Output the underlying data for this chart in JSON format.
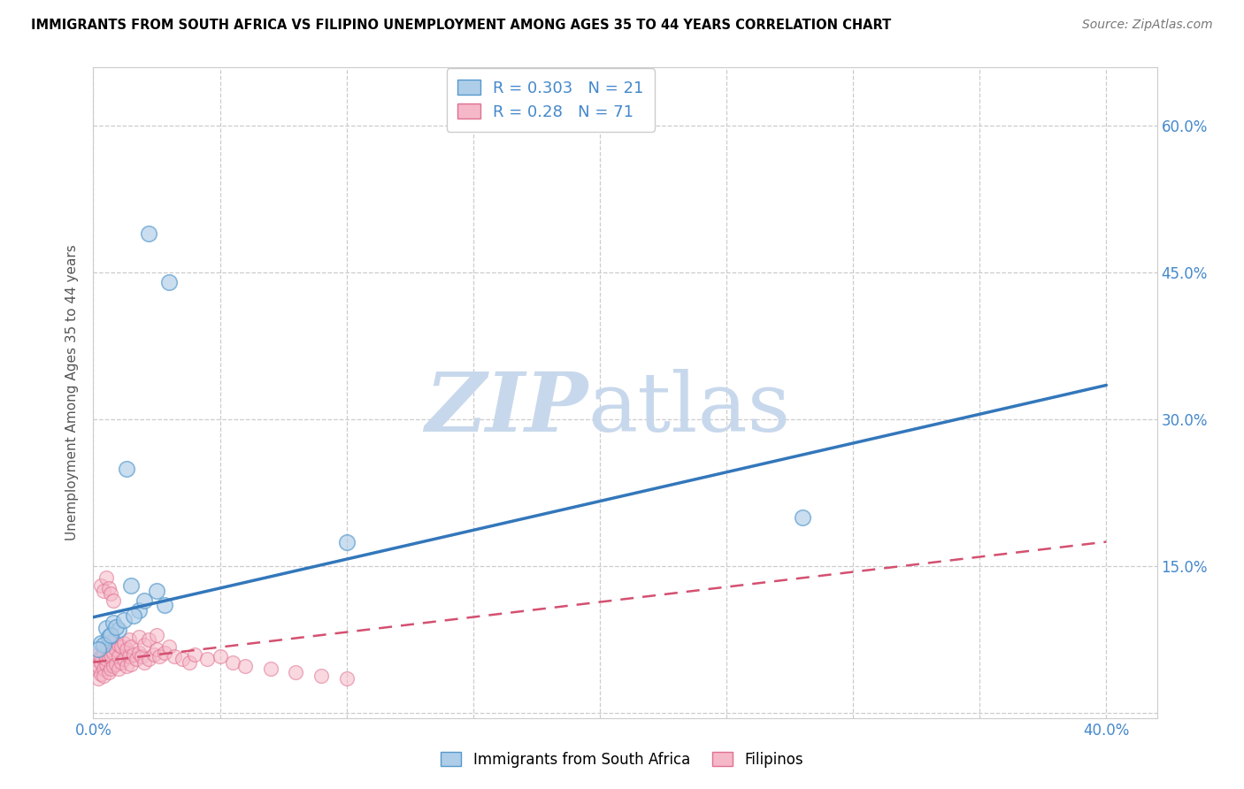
{
  "title": "IMMIGRANTS FROM SOUTH AFRICA VS FILIPINO UNEMPLOYMENT AMONG AGES 35 TO 44 YEARS CORRELATION CHART",
  "source": "Source: ZipAtlas.com",
  "ylabel": "Unemployment Among Ages 35 to 44 years",
  "xlim": [
    0.0,
    0.42
  ],
  "ylim": [
    -0.005,
    0.66
  ],
  "xticks": [
    0.0,
    0.05,
    0.1,
    0.15,
    0.2,
    0.25,
    0.3,
    0.35,
    0.4
  ],
  "yticks": [
    0.0,
    0.15,
    0.3,
    0.45,
    0.6
  ],
  "ytick_right_labels": [
    "",
    "15.0%",
    "30.0%",
    "45.0%",
    "60.0%"
  ],
  "blue_R": 0.303,
  "blue_N": 21,
  "pink_R": 0.28,
  "pink_N": 71,
  "blue_fill": "#aecde8",
  "blue_edge": "#5599cc",
  "blue_line": "#3377bb",
  "pink_fill": "#f5b8c8",
  "pink_edge": "#e07090",
  "pink_line": "#d45070",
  "watermark_zip_color": "#c8d8ec",
  "watermark_atlas_color": "#c8d8ec",
  "tick_label_color": "#4488cc",
  "blue_scatter_x": [
    0.022,
    0.03,
    0.005,
    0.008,
    0.003,
    0.006,
    0.01,
    0.004,
    0.013,
    0.007,
    0.015,
    0.009,
    0.002,
    0.018,
    0.02,
    0.012,
    0.025,
    0.028,
    0.016,
    0.28,
    0.1
  ],
  "blue_scatter_y": [
    0.49,
    0.44,
    0.087,
    0.092,
    0.072,
    0.078,
    0.085,
    0.07,
    0.25,
    0.08,
    0.13,
    0.088,
    0.065,
    0.105,
    0.115,
    0.095,
    0.125,
    0.11,
    0.1,
    0.2,
    0.175
  ],
  "pink_scatter_x": [
    0.001,
    0.001,
    0.002,
    0.002,
    0.002,
    0.003,
    0.003,
    0.003,
    0.004,
    0.004,
    0.004,
    0.005,
    0.005,
    0.005,
    0.006,
    0.006,
    0.006,
    0.007,
    0.007,
    0.007,
    0.008,
    0.008,
    0.008,
    0.009,
    0.009,
    0.01,
    0.01,
    0.01,
    0.011,
    0.011,
    0.012,
    0.012,
    0.013,
    0.013,
    0.014,
    0.014,
    0.015,
    0.015,
    0.016,
    0.017,
    0.018,
    0.018,
    0.019,
    0.02,
    0.02,
    0.022,
    0.022,
    0.024,
    0.025,
    0.025,
    0.026,
    0.028,
    0.03,
    0.032,
    0.035,
    0.038,
    0.04,
    0.045,
    0.05,
    0.055,
    0.06,
    0.07,
    0.08,
    0.09,
    0.1,
    0.003,
    0.004,
    0.005,
    0.006,
    0.007,
    0.008
  ],
  "pink_scatter_y": [
    0.045,
    0.055,
    0.048,
    0.06,
    0.035,
    0.052,
    0.058,
    0.04,
    0.045,
    0.062,
    0.038,
    0.05,
    0.055,
    0.068,
    0.042,
    0.058,
    0.065,
    0.045,
    0.06,
    0.072,
    0.048,
    0.062,
    0.075,
    0.05,
    0.065,
    0.045,
    0.058,
    0.07,
    0.052,
    0.068,
    0.055,
    0.072,
    0.048,
    0.065,
    0.058,
    0.075,
    0.05,
    0.068,
    0.06,
    0.055,
    0.062,
    0.078,
    0.058,
    0.052,
    0.07,
    0.055,
    0.075,
    0.06,
    0.065,
    0.08,
    0.058,
    0.062,
    0.068,
    0.058,
    0.055,
    0.052,
    0.06,
    0.055,
    0.058,
    0.052,
    0.048,
    0.045,
    0.042,
    0.038,
    0.035,
    0.13,
    0.125,
    0.138,
    0.128,
    0.122,
    0.115
  ],
  "blue_trend_x0": 0.0,
  "blue_trend_x1": 0.4,
  "blue_trend_y0": 0.098,
  "blue_trend_y1": 0.335,
  "pink_trend_x0": 0.0,
  "pink_trend_x1": 0.4,
  "pink_trend_y0": 0.052,
  "pink_trend_y1": 0.175
}
